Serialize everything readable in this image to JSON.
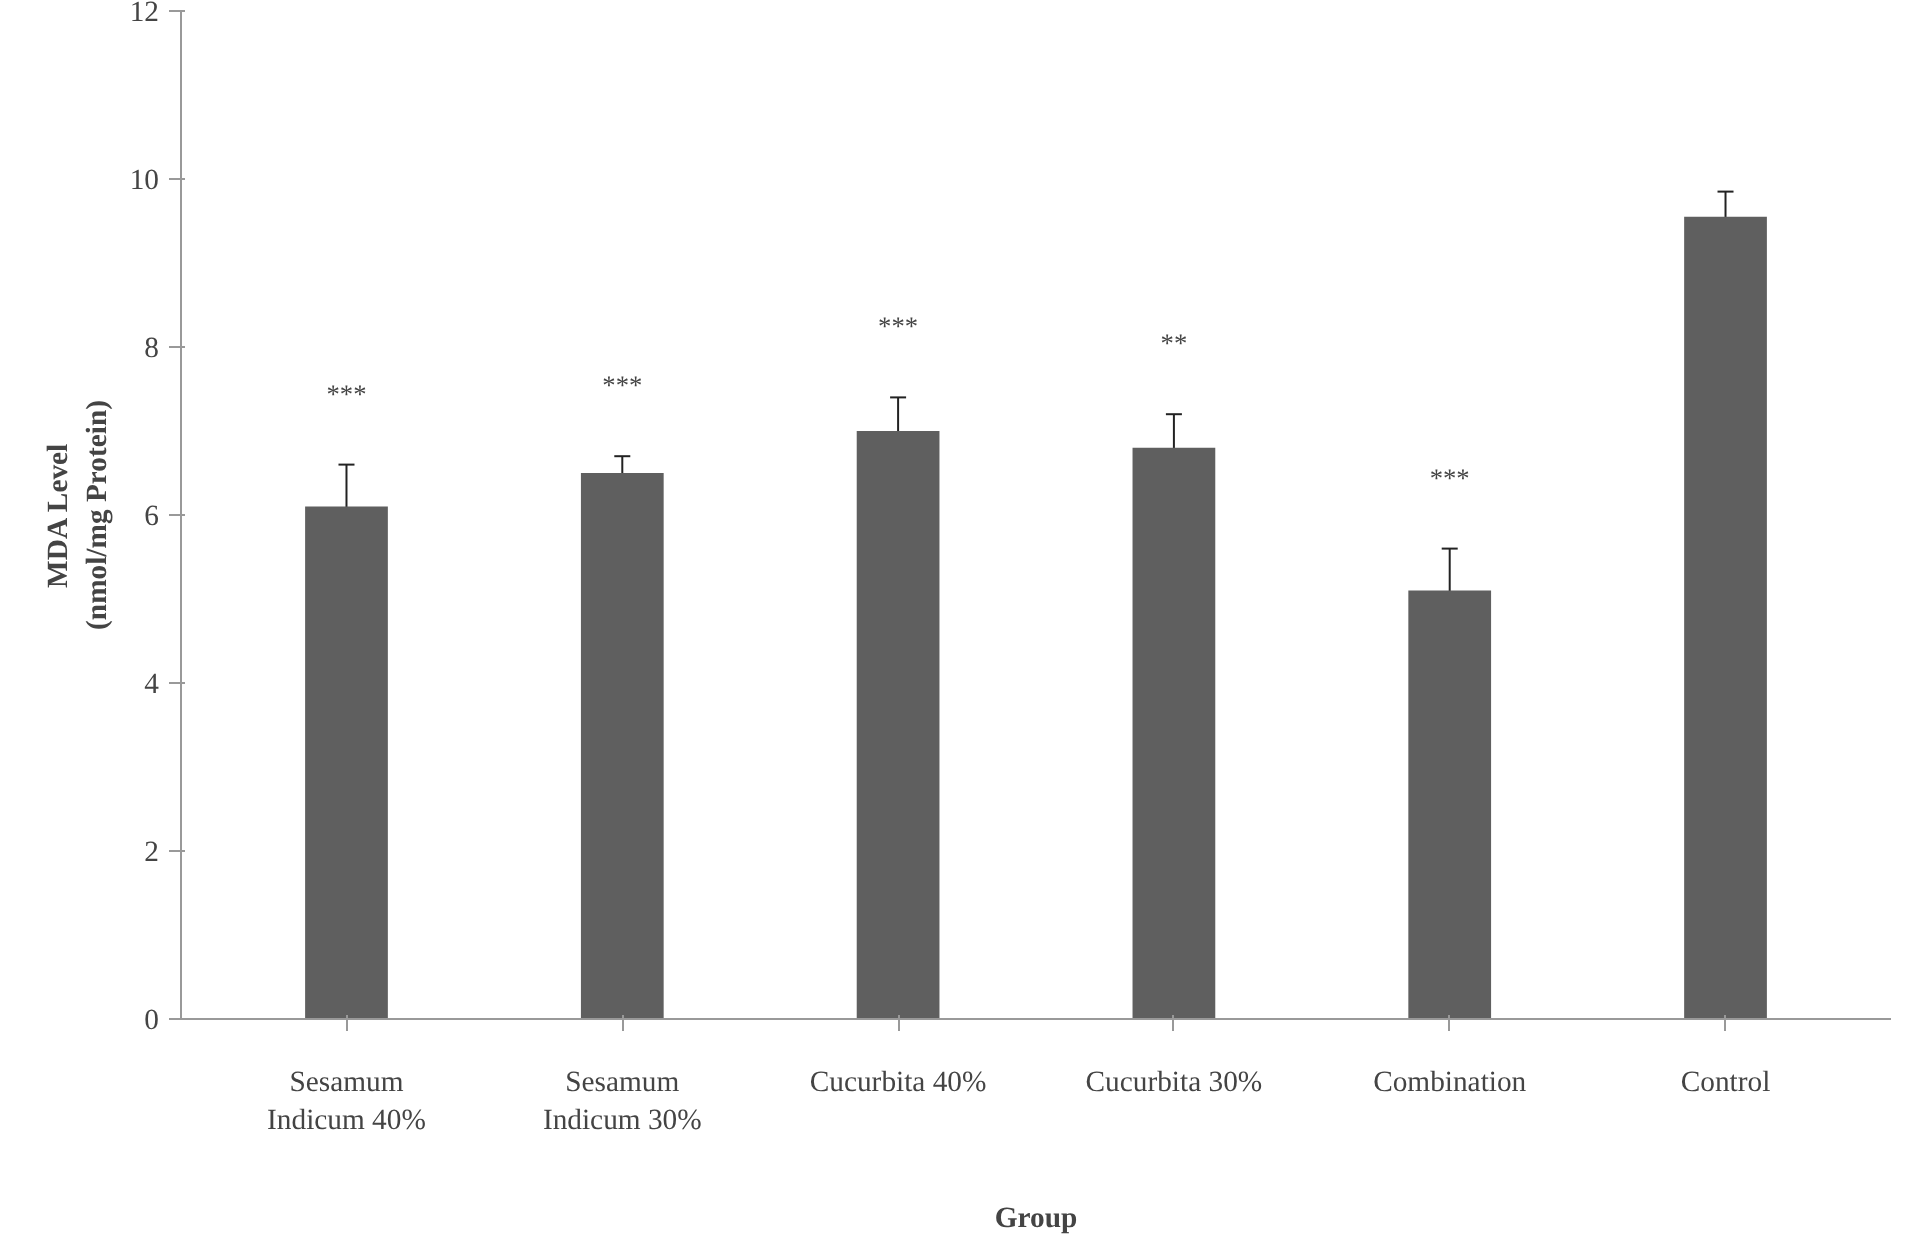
{
  "chart_data": {
    "type": "bar",
    "xlabel": "Group",
    "ylabel": "MDA Level\n(nmol/mg Protein)",
    "categories": [
      "Sesamum\nIndicum 40%",
      "Sesamum\nIndicum 30%",
      "Cucurbita 40%",
      "Cucurbita 30%",
      "Combination",
      "Control"
    ],
    "values": [
      6.1,
      6.5,
      7.0,
      6.8,
      5.1,
      9.55
    ],
    "errors": [
      0.5,
      0.2,
      0.4,
      0.4,
      0.5,
      0.3
    ],
    "color": "#5f5f5f",
    "ylim": [
      0,
      12
    ],
    "yticks": [
      0,
      2,
      4,
      6,
      8,
      10,
      12
    ],
    "grid": false,
    "annotations": [
      "***",
      "***",
      "***",
      "**",
      "***"
    ]
  }
}
